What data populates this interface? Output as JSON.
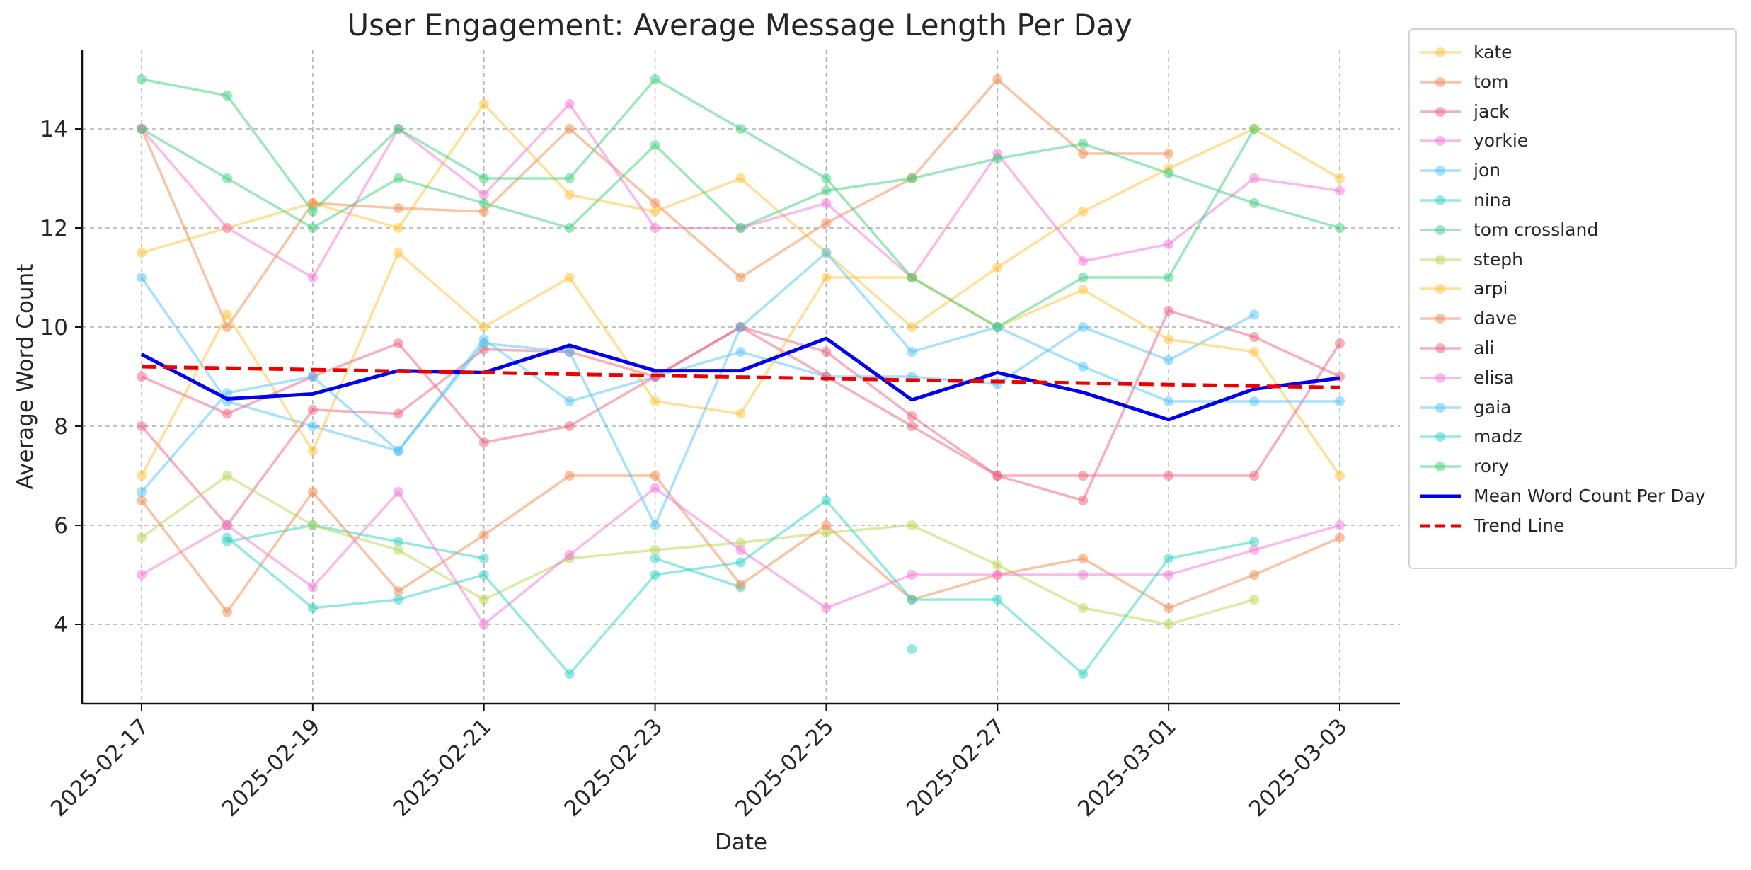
{
  "chart_data": {
    "type": "line",
    "title": "User Engagement: Average Message Length Per Day",
    "xlabel": "Date",
    "ylabel": "Average Word Count",
    "x": [
      "2025-02-17",
      "2025-02-18",
      "2025-02-19",
      "2025-02-20",
      "2025-02-21",
      "2025-02-22",
      "2025-02-23",
      "2025-02-24",
      "2025-02-25",
      "2025-02-26",
      "2025-02-27",
      "2025-02-28",
      "2025-03-01",
      "2025-03-02",
      "2025-03-03"
    ],
    "x_tick_labels": [
      "2025-02-17",
      "2025-02-19",
      "2025-02-21",
      "2025-02-23",
      "2025-02-25",
      "2025-02-27",
      "2025-03-01",
      "2025-03-03"
    ],
    "y_ticks": [
      4,
      6,
      8,
      10,
      12,
      14
    ],
    "ylim": [
      2.4,
      15.6
    ],
    "grid": true,
    "legend_position": "outside-right",
    "series": [
      {
        "name": "kate",
        "color": "#ffc233",
        "values": [
          11.5,
          12,
          12.5,
          12,
          14.5,
          12.67,
          12.33,
          13,
          11.5,
          10,
          11.2,
          12.33,
          13.2,
          14,
          13
        ]
      },
      {
        "name": "tom",
        "color": "#f4894d",
        "values": [
          14,
          10,
          12.5,
          12.4,
          12.33,
          14,
          12.5,
          11,
          12.1,
          13,
          15,
          13.5,
          13.5,
          null,
          null
        ]
      },
      {
        "name": "jack",
        "color": "#ef5f7c",
        "values": [
          8,
          6,
          8.33,
          8.25,
          9.55,
          9.5,
          9,
          10,
          9.5,
          8.2,
          7,
          6.5,
          10.33,
          9.8,
          9
        ]
      },
      {
        "name": "yorkie",
        "color": "#f576d6",
        "values": [
          14,
          12,
          11,
          14,
          12.67,
          14.5,
          12,
          12,
          12.5,
          11,
          13.5,
          11.33,
          11.67,
          13,
          12.75
        ]
      },
      {
        "name": "jon",
        "color": "#4fc3f7",
        "values": [
          11,
          8.5,
          8,
          7.5,
          9.75,
          8.5,
          9,
          9.5,
          9,
          9,
          8.85,
          10,
          9.33,
          10.25,
          null
        ]
      },
      {
        "name": "nina",
        "color": "#2ed3c7",
        "values": [
          null,
          5.67,
          6,
          5.67,
          5.33,
          null,
          5.33,
          4.75,
          null,
          3.5,
          null,
          null,
          null,
          null,
          null
        ]
      },
      {
        "name": "tom crossland",
        "color": "#3ccf7a",
        "values": [
          14,
          13,
          12,
          13,
          12.5,
          12,
          13.67,
          12,
          12.75,
          13,
          13.4,
          13.7,
          13.1,
          12.5,
          12
        ]
      },
      {
        "name": "steph",
        "color": "#b5d84e",
        "values": [
          5.75,
          7,
          6,
          5.5,
          4.5,
          5.33,
          5.5,
          5.65,
          5.85,
          6,
          5.2,
          4.33,
          4,
          4.5,
          null
        ]
      },
      {
        "name": "arpi",
        "color": "#ffc233",
        "values": [
          7,
          10.25,
          7.5,
          11.5,
          10,
          11,
          8.5,
          8.25,
          11,
          11,
          10,
          10.75,
          9.75,
          9.5,
          7
        ]
      },
      {
        "name": "dave",
        "color": "#f4894d",
        "values": [
          6.5,
          4.25,
          6.67,
          4.67,
          5.8,
          7,
          7,
          4.8,
          6,
          4.5,
          5,
          5.33,
          4.33,
          5,
          5.75
        ]
      },
      {
        "name": "ali",
        "color": "#ef5f7c",
        "values": [
          9,
          8.25,
          9,
          9.67,
          7.67,
          8,
          9,
          10,
          9,
          8,
          7,
          7,
          7,
          7,
          9.67
        ]
      },
      {
        "name": "elisa",
        "color": "#f576d6",
        "values": [
          5,
          6,
          4.75,
          6.67,
          4,
          5.4,
          6.75,
          5.5,
          4.33,
          5,
          5,
          5,
          5,
          5.5,
          6
        ]
      },
      {
        "name": "gaia",
        "color": "#4fc3f7",
        "values": [
          6.67,
          8.67,
          9,
          7.5,
          9.67,
          9.5,
          6,
          10,
          11.5,
          9.5,
          10,
          9.2,
          8.5,
          8.5,
          8.5
        ]
      },
      {
        "name": "madz",
        "color": "#2ed3c7",
        "values": [
          null,
          5.75,
          4.33,
          4.5,
          5,
          3,
          5,
          5.25,
          6.5,
          4.5,
          4.5,
          3,
          5.33,
          5.67,
          null
        ]
      },
      {
        "name": "rory",
        "color": "#3ccf7a",
        "values": [
          15,
          14.67,
          12.33,
          14,
          13,
          13,
          15,
          14,
          13,
          11,
          10,
          11,
          11,
          14,
          null
        ]
      }
    ],
    "mean": {
      "name": "Mean Word Count Per Day",
      "color": "#0000ee",
      "values": [
        9.45,
        8.55,
        8.65,
        9.12,
        9.08,
        9.63,
        9.12,
        9.12,
        9.77,
        8.53,
        9.08,
        8.68,
        8.13,
        8.75,
        8.97
      ]
    },
    "trend": {
      "name": "Trend Line",
      "color": "#ee0000",
      "values": [
        9.2,
        8.78
      ]
    }
  }
}
